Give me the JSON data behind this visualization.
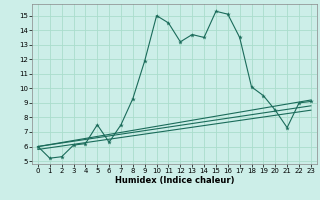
{
  "xlabel": "Humidex (Indice chaleur)",
  "background_color": "#cceee8",
  "grid_color": "#aaddcc",
  "line_color": "#1a6b5a",
  "xlim": [
    -0.5,
    23.5
  ],
  "ylim": [
    4.8,
    15.8
  ],
  "yticks": [
    5,
    6,
    7,
    8,
    9,
    10,
    11,
    12,
    13,
    14,
    15
  ],
  "xticks": [
    0,
    1,
    2,
    3,
    4,
    5,
    6,
    7,
    8,
    9,
    10,
    11,
    12,
    13,
    14,
    15,
    16,
    17,
    18,
    19,
    20,
    21,
    22,
    23
  ],
  "series1_x": [
    0,
    1,
    2,
    3,
    4,
    5,
    6,
    7,
    8,
    9,
    10,
    11,
    12,
    13,
    14,
    15,
    16,
    17,
    18,
    19,
    20,
    21,
    22,
    23
  ],
  "series1_y": [
    6.0,
    5.2,
    5.3,
    6.1,
    6.2,
    7.5,
    6.3,
    7.5,
    9.3,
    11.9,
    15.0,
    14.5,
    13.2,
    13.7,
    13.5,
    15.3,
    15.1,
    13.5,
    10.1,
    9.5,
    8.5,
    7.3,
    9.0,
    9.1
  ],
  "series2_x": [
    0,
    23
  ],
  "series2_y": [
    6.0,
    9.2
  ],
  "series3_x": [
    0,
    23
  ],
  "series3_y": [
    6.0,
    8.8
  ],
  "series4_x": [
    0,
    23
  ],
  "series4_y": [
    5.8,
    8.5
  ]
}
